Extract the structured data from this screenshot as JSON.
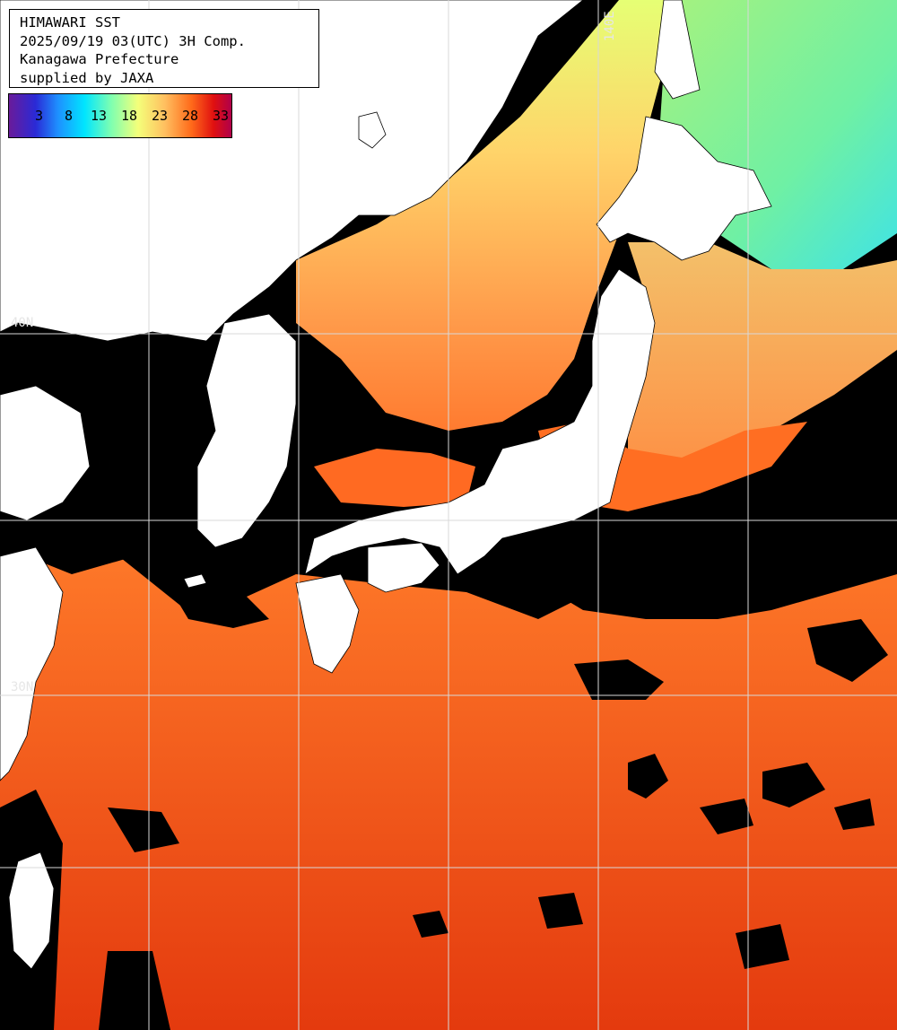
{
  "header": {
    "title": "HIMAWARI SST",
    "datetime": "2025/09/19 03(UTC) 3H Comp.",
    "region": "Kanagawa Prefecture",
    "credit": "supplied by JAXA"
  },
  "legend": {
    "ticks": [
      "3",
      "8",
      "13",
      "18",
      "23",
      "28",
      "33"
    ]
  },
  "grid_labels": {
    "lat_40": "40N",
    "lat_30": "30N",
    "lon_140": "140E"
  },
  "colors": {
    "no_data": "#000000",
    "land": "#ffffff",
    "grid": "#d8d8d8",
    "sst_cold": "#2fd6f0",
    "sst_cool": "#7ef08c",
    "sst_mild": "#e8ff70",
    "sst_warm": "#f5a85a",
    "sst_hot": "#ec3a10"
  }
}
